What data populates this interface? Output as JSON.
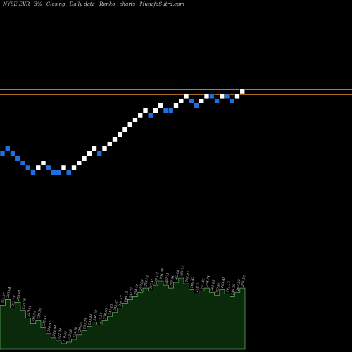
{
  "header": {
    "symbol": "NYSE EVR",
    "change": "3%",
    "label1": "Closing",
    "label2": "Daily data",
    "label3": "Renko",
    "label4": "charts",
    "site": "MunafaSutra.com"
  },
  "colors": {
    "background": "#000000",
    "brick_up": "#ffffff",
    "brick_down": "#1e6fe0",
    "resistance_line": "#c27a1e",
    "volume_fill": "#0b2a0b",
    "volume_stroke": "#7dd07d",
    "label_text": "#d8d8d8"
  },
  "chart_data": {
    "type": "renko",
    "title": "",
    "xlabel": "",
    "ylabel": "",
    "grid": false,
    "brick_size": 2.62,
    "levels": [
      0,
      1,
      0,
      -1,
      -2,
      -3,
      -4,
      -3,
      -2,
      -3,
      -4,
      -4,
      -3,
      -4,
      -3,
      -2,
      -1,
      0,
      1,
      0,
      1,
      2,
      3,
      4,
      5,
      6,
      7,
      8,
      9,
      8,
      9,
      10,
      9,
      9,
      10,
      11,
      12,
      11,
      10,
      11,
      12,
      12,
      11,
      12,
      12,
      11,
      12,
      13
    ],
    "directions": [
      "down",
      "down",
      "down",
      "down",
      "down",
      "down",
      "down",
      "up",
      "up",
      "down",
      "down",
      "down",
      "up",
      "down",
      "up",
      "up",
      "up",
      "up",
      "up",
      "down",
      "up",
      "up",
      "up",
      "up",
      "up",
      "up",
      "up",
      "up",
      "up",
      "down",
      "up",
      "up",
      "down",
      "down",
      "up",
      "up",
      "up",
      "down",
      "down",
      "up",
      "up",
      "down",
      "down",
      "up",
      "down",
      "down",
      "up",
      "up"
    ],
    "resistance_levels": [
      13.3,
      12.3
    ],
    "volume": [
      0.62,
      0.7,
      0.58,
      0.66,
      0.54,
      0.44,
      0.36,
      0.4,
      0.3,
      0.22,
      0.16,
      0.12,
      0.08,
      0.1,
      0.14,
      0.2,
      0.26,
      0.32,
      0.38,
      0.34,
      0.4,
      0.46,
      0.52,
      0.58,
      0.64,
      0.7,
      0.74,
      0.8,
      0.86,
      0.82,
      0.9,
      0.96,
      0.9,
      0.86,
      0.94,
      1.0,
      0.92,
      0.84,
      0.78,
      0.82,
      0.86,
      0.8,
      0.76,
      0.84,
      0.78,
      0.74,
      0.8,
      0.86
    ],
    "volume_labels": [
      "261.57",
      "263.04",
      "255.58",
      "258.81",
      "250.26",
      "243.04",
      "236.70",
      "238.55",
      "232.41",
      "228.67",
      "224.93",
      "222.30",
      "219.53",
      "223.38",
      "224.78",
      "228.65",
      "230.73",
      "233.44",
      "236.09",
      "235.57",
      "238.60",
      "241.25",
      "243.81",
      "246.47",
      "249.13",
      "251.77",
      "254.41",
      "257.09",
      "259.73",
      "257.45",
      "261.02",
      "264.38",
      "260.21",
      "258.64",
      "262.08",
      "265.77",
      "262.93",
      "260.42",
      "258.31",
      "261.45",
      "264.74",
      "261.85",
      "259.92",
      "263.41",
      "261.12",
      "259.38",
      "262.33",
      "265.50"
    ]
  }
}
